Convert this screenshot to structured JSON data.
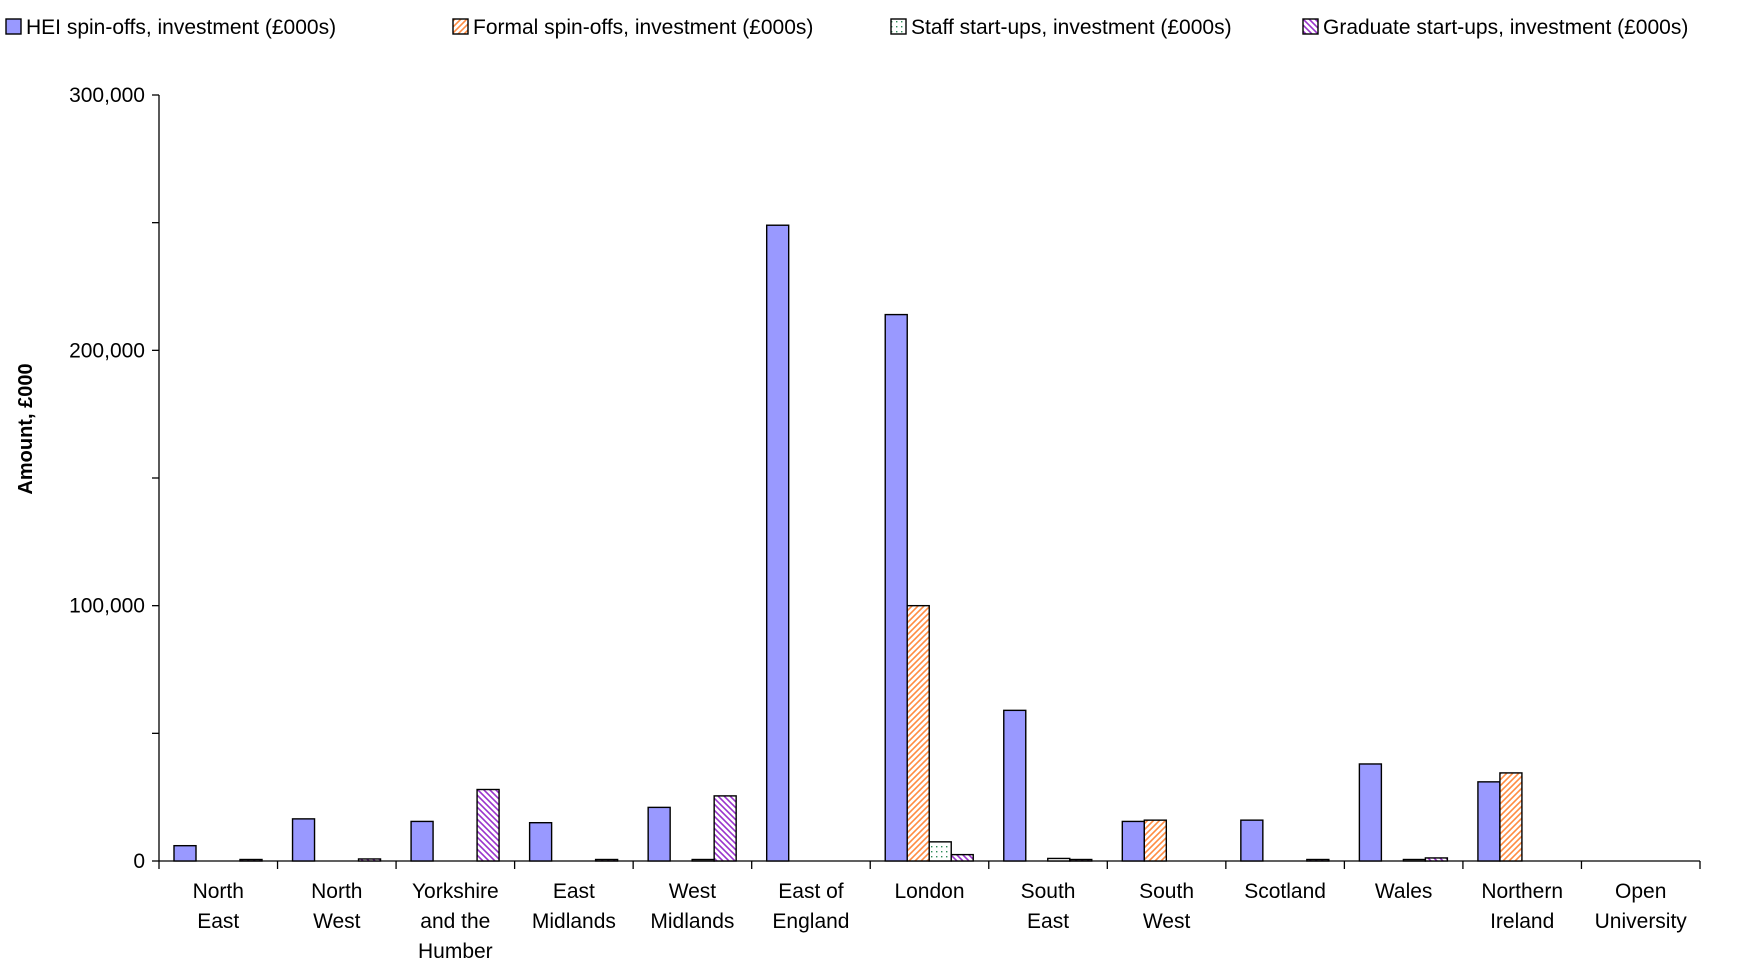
{
  "chart_data": {
    "type": "bar",
    "title": "",
    "xlabel": "",
    "ylabel": "Amount, £000",
    "ylim": [
      0,
      300000
    ],
    "yticks": [
      0,
      100000,
      200000,
      300000
    ],
    "ytick_labels": [
      "0",
      "100,000",
      "200,000",
      "300,000"
    ],
    "grid": false,
    "legend_position": "top",
    "categories": [
      [
        "North",
        "East"
      ],
      [
        "North",
        "West"
      ],
      [
        "Yorkshire",
        "and the",
        "Humber"
      ],
      [
        "East",
        "Midlands"
      ],
      [
        "West",
        "Midlands"
      ],
      [
        "East of",
        "England"
      ],
      [
        "London"
      ],
      [
        "South",
        "East"
      ],
      [
        "South",
        "West"
      ],
      [
        "Scotland"
      ],
      [
        "Wales"
      ],
      [
        "Northern",
        "Ireland"
      ],
      [
        "Open",
        "University"
      ]
    ],
    "series": [
      {
        "name": "HEI spin-offs, investment (£000s)",
        "color": "#9999ff",
        "pattern": "solid",
        "values": [
          6000,
          16500,
          15500,
          15000,
          21000,
          249000,
          214000,
          59000,
          15500,
          16000,
          38000,
          31000,
          0
        ]
      },
      {
        "name": "Formal spin-offs, investment (£000s)",
        "color": "#ff8c42",
        "pattern": "diagonal",
        "values": [
          0,
          0,
          0,
          0,
          0,
          0,
          100000,
          0,
          16000,
          0,
          0,
          34500,
          0
        ]
      },
      {
        "name": "Staff start-ups, investment (£000s)",
        "color": "#2e8b57",
        "pattern": "dots",
        "values": [
          0,
          0,
          0,
          0,
          500,
          0,
          7500,
          1000,
          0,
          0,
          500,
          0,
          0
        ]
      },
      {
        "name": "Graduate start-ups, investment (£000s)",
        "color": "#9933cc",
        "pattern": "diagonal",
        "values": [
          300,
          800,
          28000,
          300,
          25500,
          0,
          2500,
          500,
          0,
          200,
          1200,
          0,
          0
        ]
      }
    ]
  }
}
